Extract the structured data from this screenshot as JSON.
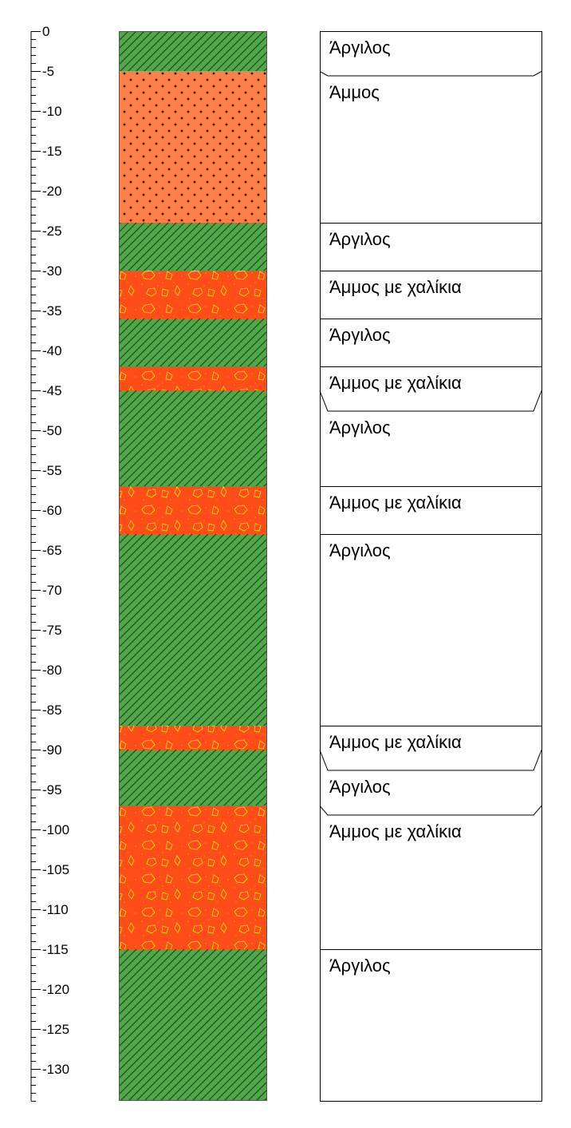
{
  "depth_axis": {
    "ticks": [
      "0",
      "-5",
      "-10",
      "-15",
      "-20",
      "-25",
      "-30",
      "-35",
      "-40",
      "-45",
      "-50",
      "-55",
      "-60",
      "-65",
      "-70",
      "-75",
      "-80",
      "-85",
      "-90",
      "-95",
      "-100",
      "-105",
      "-110",
      "-115",
      "-120",
      "-125",
      "-130"
    ],
    "min": 0,
    "max": -134
  },
  "layers": [
    {
      "top": 0,
      "bottom": 5,
      "material": "clay",
      "label": "Άργιλος"
    },
    {
      "top": 5,
      "bottom": 24,
      "material": "sand",
      "label": "Άμμος"
    },
    {
      "top": 24,
      "bottom": 30,
      "material": "clay",
      "label": "Άργιλος"
    },
    {
      "top": 30,
      "bottom": 36,
      "material": "sand-gravel",
      "label": "Άμμος με χαλίκια"
    },
    {
      "top": 36,
      "bottom": 42,
      "material": "clay",
      "label": "Άργιλος"
    },
    {
      "top": 42,
      "bottom": 45,
      "material": "sand-gravel",
      "label": "Άμμος με χαλίκια"
    },
    {
      "top": 45,
      "bottom": 57,
      "material": "clay",
      "label": "Άργιλος"
    },
    {
      "top": 57,
      "bottom": 63,
      "material": "sand-gravel",
      "label": "Άμμος με χαλίκια"
    },
    {
      "top": 63,
      "bottom": 87,
      "material": "clay",
      "label": "Άργιλος"
    },
    {
      "top": 87,
      "bottom": 90,
      "material": "sand-gravel",
      "label": "Άμμος με χαλίκια"
    },
    {
      "top": 90,
      "bottom": 97,
      "material": "clay",
      "label": "Άργιλος"
    },
    {
      "top": 97,
      "bottom": 115,
      "material": "sand-gravel",
      "label": "Άμμος με χαλίκια"
    },
    {
      "top": 115,
      "bottom": 134,
      "material": "clay",
      "label": "Άργιλος"
    }
  ],
  "materials": {
    "clay": {
      "fill": "#52a64a",
      "hatch": "#1a3a1a"
    },
    "sand": {
      "fill": "#ff7f45",
      "dots": "#000000"
    },
    "sand-gravel": {
      "fill": "#ff4d1a",
      "pebbles": "#ffe600"
    }
  }
}
